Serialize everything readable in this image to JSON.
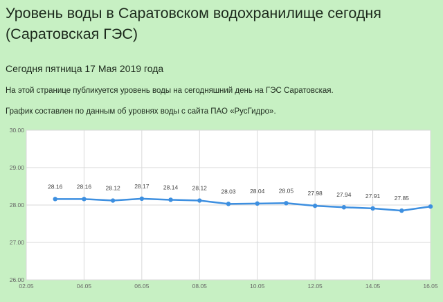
{
  "page": {
    "title": "Уровень воды в Саратовском водохранилище сегодня (Саратовская ГЭС)",
    "date_line": "Сегодня пятница 17 Мая 2019 года",
    "intro": "На этой странице публикуется уровень воды на сегодняшний день на ГЭС Саратовская.",
    "source_note": "График составлен по данным об уровнях воды с сайта ПАО «РусГидро»."
  },
  "colors": {
    "background": "#c7f0c3",
    "plot_background": "#ffffff",
    "line": "#3d8fe0",
    "grid": "#d9d9d9"
  },
  "chart_data": {
    "type": "line",
    "title": "",
    "xlabel": "",
    "ylabel": "",
    "x_ticks": [
      "02.05",
      "04.05",
      "06.05",
      "08.05",
      "10.05",
      "12.05",
      "14.05",
      "16.05"
    ],
    "y_ticks": [
      "26.00",
      "27.00",
      "28.00",
      "29.00",
      "30.00"
    ],
    "ylim": [
      26,
      30
    ],
    "x_start": "02.05",
    "x_end": "16.05",
    "grid": true,
    "series": [
      {
        "x": [
          "03.05",
          "04.05",
          "05.05",
          "06.05",
          "07.05",
          "08.05",
          "09.05",
          "10.05",
          "11.05",
          "12.05",
          "13.05",
          "14.05",
          "15.05",
          "16.05"
        ],
        "values": [
          28.16,
          28.16,
          28.12,
          28.17,
          28.14,
          28.12,
          28.03,
          28.04,
          28.05,
          27.98,
          27.94,
          27.91,
          27.85,
          27.96
        ],
        "labels": [
          "28.16",
          "28.16",
          "28.12",
          "28.17",
          "28.14",
          "28.12",
          "28.03",
          "28.04",
          "28.05",
          "27.98",
          "27.94",
          "27.91",
          "27.85",
          ""
        ]
      }
    ]
  }
}
